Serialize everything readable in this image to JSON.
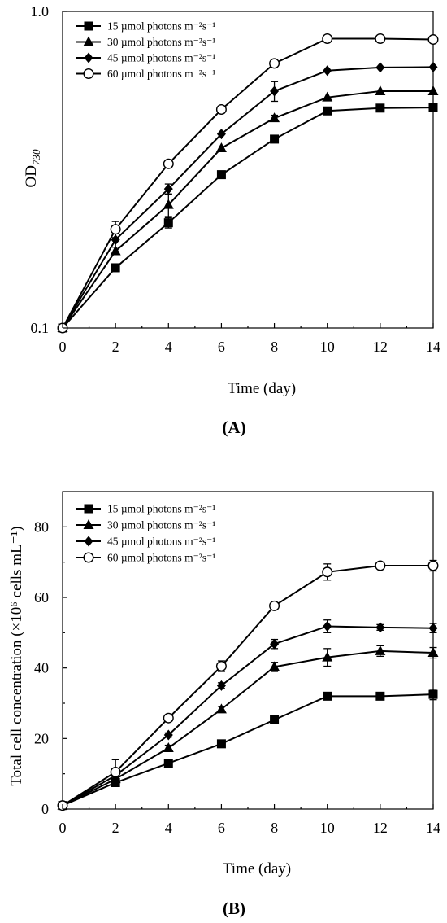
{
  "chart_data": [
    {
      "type": "line",
      "panel_label": "A",
      "xlabel": "Time (day)",
      "ylabel_main": "OD",
      "ylabel_sub": "730",
      "yscale": "log",
      "xlim": [
        0,
        14
      ],
      "ylim": [
        0.1,
        1.0
      ],
      "x_ticks": [
        "0",
        "2",
        "4",
        "6",
        "8",
        "10",
        "12",
        "14"
      ],
      "y_ticks": [
        "0.1",
        "1.0"
      ],
      "grid": false,
      "legend_position": "top-left",
      "x": [
        0,
        2,
        4,
        6,
        8,
        10,
        12,
        14
      ],
      "series": [
        {
          "name": "15 µmol photons m⁻²s⁻¹",
          "marker": "square",
          "values": [
            0.1,
            0.155,
            0.215,
            0.305,
            0.395,
            0.485,
            0.495,
            0.497
          ],
          "errors": [
            0,
            0,
            0.008,
            0,
            0,
            0,
            0,
            0
          ]
        },
        {
          "name": "30 µmol photons m⁻²s⁻¹",
          "marker": "triangle",
          "values": [
            0.1,
            0.175,
            0.245,
            0.37,
            0.46,
            0.535,
            0.56,
            0.56
          ],
          "errors": [
            0,
            0,
            0.02,
            0,
            0.01,
            0,
            0,
            0
          ]
        },
        {
          "name": "45 µmol photons m⁻²s⁻¹",
          "marker": "diamond",
          "values": [
            0.1,
            0.19,
            0.275,
            0.41,
            0.56,
            0.65,
            0.665,
            0.667
          ],
          "errors": [
            0,
            0.01,
            0.01,
            0,
            0.04,
            0,
            0,
            0
          ]
        },
        {
          "name": "60 µmol photons m⁻²s⁻¹",
          "marker": "circle",
          "values": [
            0.1,
            0.205,
            0.33,
            0.49,
            0.685,
            0.82,
            0.82,
            0.815
          ],
          "errors": [
            0,
            0.012,
            0,
            0,
            0,
            0,
            0,
            0
          ]
        }
      ]
    },
    {
      "type": "line",
      "panel_label": "B",
      "xlabel": "Time (day)",
      "ylabel": "Total cell concentration (×10⁶ cells mL⁻¹)",
      "yscale": "linear",
      "xlim": [
        0,
        14
      ],
      "ylim": [
        0,
        90
      ],
      "x_ticks": [
        "0",
        "2",
        "4",
        "6",
        "8",
        "10",
        "12",
        "14"
      ],
      "y_ticks": [
        "0",
        "20",
        "40",
        "60",
        "80"
      ],
      "grid": false,
      "legend_position": "top-left",
      "x": [
        0,
        2,
        4,
        6,
        8,
        10,
        12,
        14
      ],
      "series": [
        {
          "name": "15 µmol photons m⁻²s⁻¹",
          "marker": "square",
          "values": [
            1,
            7.5,
            13,
            18.5,
            25.3,
            32,
            32,
            32.5
          ],
          "errors": [
            0,
            0.8,
            0.6,
            0.5,
            0.5,
            1.0,
            0.5,
            1.5
          ]
        },
        {
          "name": "30 µmol photons m⁻²s⁻¹",
          "marker": "triangle",
          "values": [
            1,
            8.5,
            17.3,
            28.3,
            40.3,
            43,
            44.8,
            44.3
          ],
          "errors": [
            0,
            0.8,
            0.8,
            0.8,
            1.3,
            2.5,
            1.5,
            1.5
          ]
        },
        {
          "name": "45 µmol photons m⁻²s⁻¹",
          "marker": "diamond",
          "values": [
            1,
            9.5,
            21,
            35,
            46.8,
            51.8,
            51.5,
            51.3
          ],
          "errors": [
            0,
            1.0,
            0.6,
            0.8,
            1.3,
            1.8,
            0.8,
            1.3
          ]
        },
        {
          "name": "60 µmol photons m⁻²s⁻¹",
          "marker": "circle",
          "values": [
            1,
            10.5,
            25.8,
            40.5,
            57.6,
            67.2,
            69,
            69
          ],
          "errors": [
            0,
            3.5,
            0.5,
            1.5,
            0.5,
            2.3,
            0.5,
            1.5
          ]
        }
      ]
    }
  ]
}
